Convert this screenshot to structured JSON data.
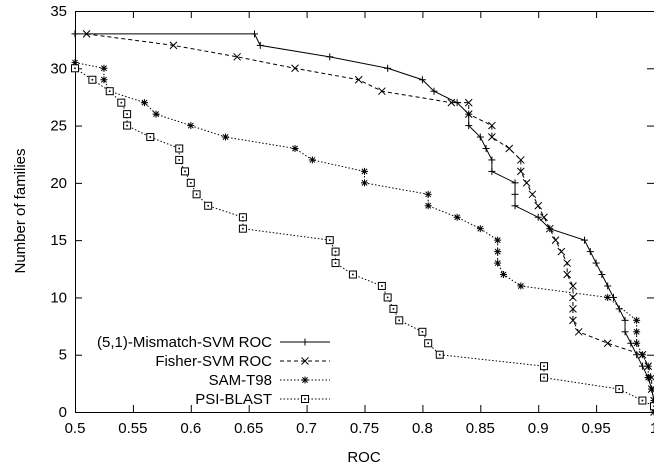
{
  "chart_data": {
    "type": "line",
    "title": "",
    "xlabel": "ROC",
    "ylabel": "Number of families",
    "xlim": [
      0.5,
      1.0
    ],
    "ylim": [
      0,
      35
    ],
    "grid": false,
    "legend_position": "bottom-left",
    "x_ticks": [
      "0.5",
      "0.55",
      "0.6",
      "0.65",
      "0.7",
      "0.75",
      "0.8",
      "0.85",
      "0.9",
      "0.95",
      "1"
    ],
    "y_ticks": [
      "0",
      "5",
      "10",
      "15",
      "20",
      "25",
      "30",
      "35"
    ],
    "series": [
      {
        "name": "(5,1)-Mismatch-SVM ROC",
        "line_style": "solid",
        "marker": "plus",
        "points": [
          [
            0.5,
            33
          ],
          [
            0.655,
            33
          ],
          [
            0.66,
            32
          ],
          [
            0.72,
            31
          ],
          [
            0.77,
            30
          ],
          [
            0.8,
            29
          ],
          [
            0.81,
            28
          ],
          [
            0.83,
            27
          ],
          [
            0.84,
            26
          ],
          [
            0.84,
            25
          ],
          [
            0.85,
            24
          ],
          [
            0.855,
            23
          ],
          [
            0.86,
            22
          ],
          [
            0.86,
            21
          ],
          [
            0.88,
            20
          ],
          [
            0.88,
            19
          ],
          [
            0.88,
            18
          ],
          [
            0.9,
            17
          ],
          [
            0.91,
            16
          ],
          [
            0.94,
            15
          ],
          [
            0.945,
            14
          ],
          [
            0.95,
            13
          ],
          [
            0.955,
            12
          ],
          [
            0.96,
            11
          ],
          [
            0.965,
            10
          ],
          [
            0.97,
            9
          ],
          [
            0.975,
            8
          ],
          [
            0.975,
            7
          ],
          [
            0.98,
            6
          ],
          [
            0.985,
            5
          ],
          [
            0.99,
            4
          ],
          [
            0.995,
            3
          ],
          [
            0.998,
            2
          ],
          [
            1.0,
            1
          ],
          [
            1.0,
            0
          ]
        ]
      },
      {
        "name": "Fisher-SVM ROC",
        "line_style": "dashed",
        "marker": "x",
        "points": [
          [
            0.51,
            33
          ],
          [
            0.585,
            32
          ],
          [
            0.64,
            31
          ],
          [
            0.69,
            30
          ],
          [
            0.745,
            29
          ],
          [
            0.765,
            28
          ],
          [
            0.825,
            27
          ],
          [
            0.84,
            27
          ],
          [
            0.84,
            26
          ],
          [
            0.86,
            25
          ],
          [
            0.86,
            24
          ],
          [
            0.875,
            23
          ],
          [
            0.885,
            22
          ],
          [
            0.885,
            21
          ],
          [
            0.89,
            20
          ],
          [
            0.895,
            19
          ],
          [
            0.9,
            18
          ],
          [
            0.905,
            17
          ],
          [
            0.91,
            16
          ],
          [
            0.915,
            15
          ],
          [
            0.92,
            14
          ],
          [
            0.925,
            13
          ],
          [
            0.925,
            12
          ],
          [
            0.93,
            11
          ],
          [
            0.93,
            10
          ],
          [
            0.93,
            9
          ],
          [
            0.93,
            8
          ],
          [
            0.935,
            7
          ],
          [
            0.96,
            6
          ],
          [
            0.99,
            5
          ],
          [
            0.995,
            4
          ],
          [
            0.998,
            3
          ],
          [
            0.998,
            2
          ],
          [
            1.0,
            1
          ],
          [
            1.0,
            0
          ]
        ]
      },
      {
        "name": "SAM-T98",
        "line_style": "dotted",
        "marker": "star",
        "points": [
          [
            0.5,
            30.5
          ],
          [
            0.525,
            30
          ],
          [
            0.525,
            29
          ],
          [
            0.53,
            28
          ],
          [
            0.56,
            27
          ],
          [
            0.57,
            26
          ],
          [
            0.6,
            25
          ],
          [
            0.63,
            24
          ],
          [
            0.69,
            23
          ],
          [
            0.705,
            22
          ],
          [
            0.75,
            21
          ],
          [
            0.75,
            20
          ],
          [
            0.805,
            19
          ],
          [
            0.805,
            18
          ],
          [
            0.83,
            17
          ],
          [
            0.85,
            16
          ],
          [
            0.865,
            15
          ],
          [
            0.865,
            14
          ],
          [
            0.865,
            13
          ],
          [
            0.87,
            12
          ],
          [
            0.885,
            11
          ],
          [
            0.96,
            10
          ],
          [
            0.985,
            8
          ],
          [
            0.985,
            7
          ],
          [
            0.985,
            6
          ],
          [
            0.99,
            5
          ],
          [
            0.995,
            4
          ],
          [
            0.995,
            3
          ],
          [
            0.998,
            2
          ],
          [
            1.0,
            1
          ]
        ]
      },
      {
        "name": "PSI-BLAST",
        "line_style": "dotted",
        "marker": "boxed-dot",
        "points": [
          [
            0.5,
            30
          ],
          [
            0.515,
            29
          ],
          [
            0.53,
            28
          ],
          [
            0.54,
            27
          ],
          [
            0.545,
            26
          ],
          [
            0.545,
            25
          ],
          [
            0.565,
            24
          ],
          [
            0.59,
            23
          ],
          [
            0.59,
            22
          ],
          [
            0.595,
            21
          ],
          [
            0.6,
            20
          ],
          [
            0.605,
            19
          ],
          [
            0.615,
            18
          ],
          [
            0.645,
            17
          ],
          [
            0.645,
            16
          ],
          [
            0.72,
            15
          ],
          [
            0.725,
            14
          ],
          [
            0.725,
            13
          ],
          [
            0.74,
            12
          ],
          [
            0.765,
            11
          ],
          [
            0.77,
            10
          ],
          [
            0.775,
            9
          ],
          [
            0.78,
            8
          ],
          [
            0.8,
            7
          ],
          [
            0.805,
            6
          ],
          [
            0.815,
            5
          ],
          [
            0.905,
            4
          ],
          [
            0.905,
            3
          ],
          [
            0.97,
            2
          ],
          [
            0.99,
            1
          ],
          [
            1.0,
            0.5
          ]
        ]
      }
    ]
  }
}
